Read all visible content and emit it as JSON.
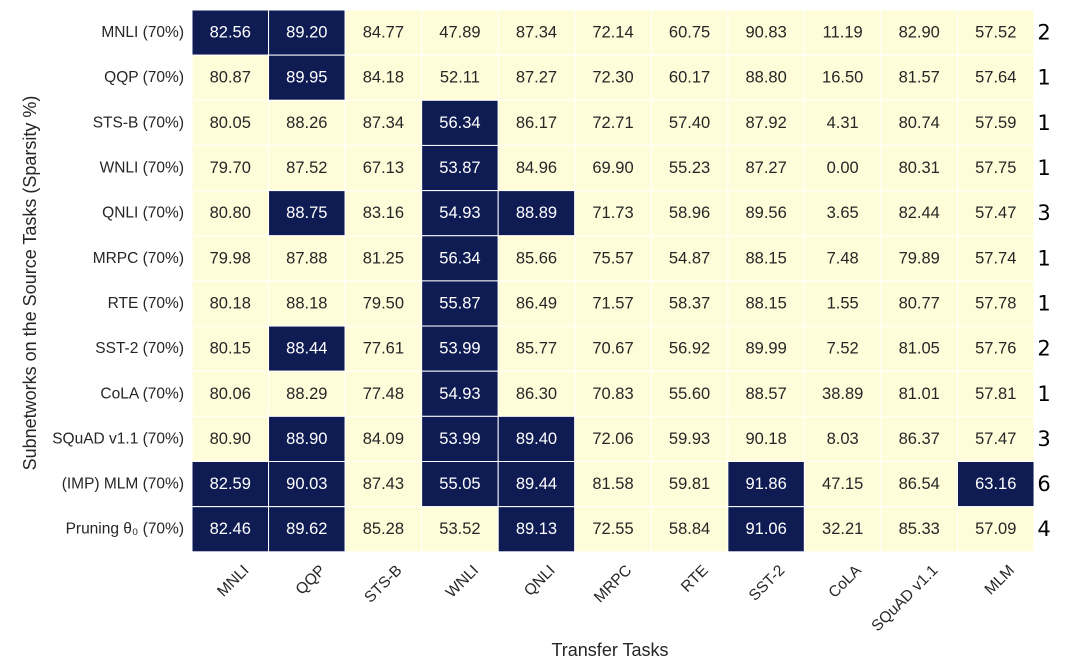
{
  "chart_data": {
    "type": "heatmap",
    "xlabel": "Transfer Tasks",
    "ylabel": "Subnetworks on the Source Tasks (Sparsity %)",
    "columns": [
      "MNLI",
      "QQP",
      "STS-B",
      "WNLI",
      "QNLI",
      "MRPC",
      "RTE",
      "SST-2",
      "CoLA",
      "SQuAD v1.1",
      "MLM"
    ],
    "rows": [
      {
        "label": "MNLI (70%)",
        "values": [
          "82.56",
          "89.20",
          "84.77",
          "47.89",
          "87.34",
          "72.14",
          "60.75",
          "90.83",
          "11.19",
          "82.90",
          "57.52"
        ],
        "highlight": [
          0,
          1
        ],
        "count": "2"
      },
      {
        "label": "QQP (70%)",
        "values": [
          "80.87",
          "89.95",
          "84.18",
          "52.11",
          "87.27",
          "72.30",
          "60.17",
          "88.80",
          "16.50",
          "81.57",
          "57.64"
        ],
        "highlight": [
          1
        ],
        "count": "1"
      },
      {
        "label": "STS-B (70%)",
        "values": [
          "80.05",
          "88.26",
          "87.34",
          "56.34",
          "86.17",
          "72.71",
          "57.40",
          "87.92",
          "4.31",
          "80.74",
          "57.59"
        ],
        "highlight": [
          3
        ],
        "count": "1"
      },
      {
        "label": "WNLI (70%)",
        "values": [
          "79.70",
          "87.52",
          "67.13",
          "53.87",
          "84.96",
          "69.90",
          "55.23",
          "87.27",
          "0.00",
          "80.31",
          "57.75"
        ],
        "highlight": [
          3
        ],
        "count": "1"
      },
      {
        "label": "QNLI (70%)",
        "values": [
          "80.80",
          "88.75",
          "83.16",
          "54.93",
          "88.89",
          "71.73",
          "58.96",
          "89.56",
          "3.65",
          "82.44",
          "57.47"
        ],
        "highlight": [
          1,
          3,
          4
        ],
        "count": "3"
      },
      {
        "label": "MRPC (70%)",
        "values": [
          "79.98",
          "87.88",
          "81.25",
          "56.34",
          "85.66",
          "75.57",
          "54.87",
          "88.15",
          "7.48",
          "79.89",
          "57.74"
        ],
        "highlight": [
          3
        ],
        "count": "1"
      },
      {
        "label": "RTE (70%)",
        "values": [
          "80.18",
          "88.18",
          "79.50",
          "55.87",
          "86.49",
          "71.57",
          "58.37",
          "88.15",
          "1.55",
          "80.77",
          "57.78"
        ],
        "highlight": [
          3
        ],
        "count": "1"
      },
      {
        "label": "SST-2 (70%)",
        "values": [
          "80.15",
          "88.44",
          "77.61",
          "53.99",
          "85.77",
          "70.67",
          "56.92",
          "89.99",
          "7.52",
          "81.05",
          "57.76"
        ],
        "highlight": [
          1,
          3
        ],
        "count": "2"
      },
      {
        "label": "CoLA (70%)",
        "values": [
          "80.06",
          "88.29",
          "77.48",
          "54.93",
          "86.30",
          "70.83",
          "55.60",
          "88.57",
          "38.89",
          "81.01",
          "57.81"
        ],
        "highlight": [
          3
        ],
        "count": "1"
      },
      {
        "label": "SQuAD v1.1 (70%)",
        "values": [
          "80.90",
          "88.90",
          "84.09",
          "53.99",
          "89.40",
          "72.06",
          "59.93",
          "90.18",
          "8.03",
          "86.37",
          "57.47"
        ],
        "highlight": [
          1,
          3,
          4
        ],
        "count": "3"
      },
      {
        "label": "(IMP) MLM (70%)",
        "values": [
          "82.59",
          "90.03",
          "87.43",
          "55.05",
          "89.44",
          "81.58",
          "59.81",
          "91.86",
          "47.15",
          "86.54",
          "63.16"
        ],
        "highlight": [
          0,
          1,
          3,
          4,
          7,
          10
        ],
        "count": "6"
      },
      {
        "label": "Pruning θ₀ (70%)",
        "values": [
          "82.46",
          "89.62",
          "85.28",
          "53.52",
          "89.13",
          "72.55",
          "58.84",
          "91.06",
          "32.21",
          "85.33",
          "57.09"
        ],
        "highlight": [
          0,
          1,
          4,
          7
        ],
        "count": "4"
      }
    ],
    "colors": {
      "highlight": "#0f1c54",
      "normal": "#fffdd9",
      "highlight_text": "#ffffff",
      "normal_text": "#262626",
      "cell_border": "#ffffff"
    },
    "grid": false,
    "legend": "none"
  }
}
